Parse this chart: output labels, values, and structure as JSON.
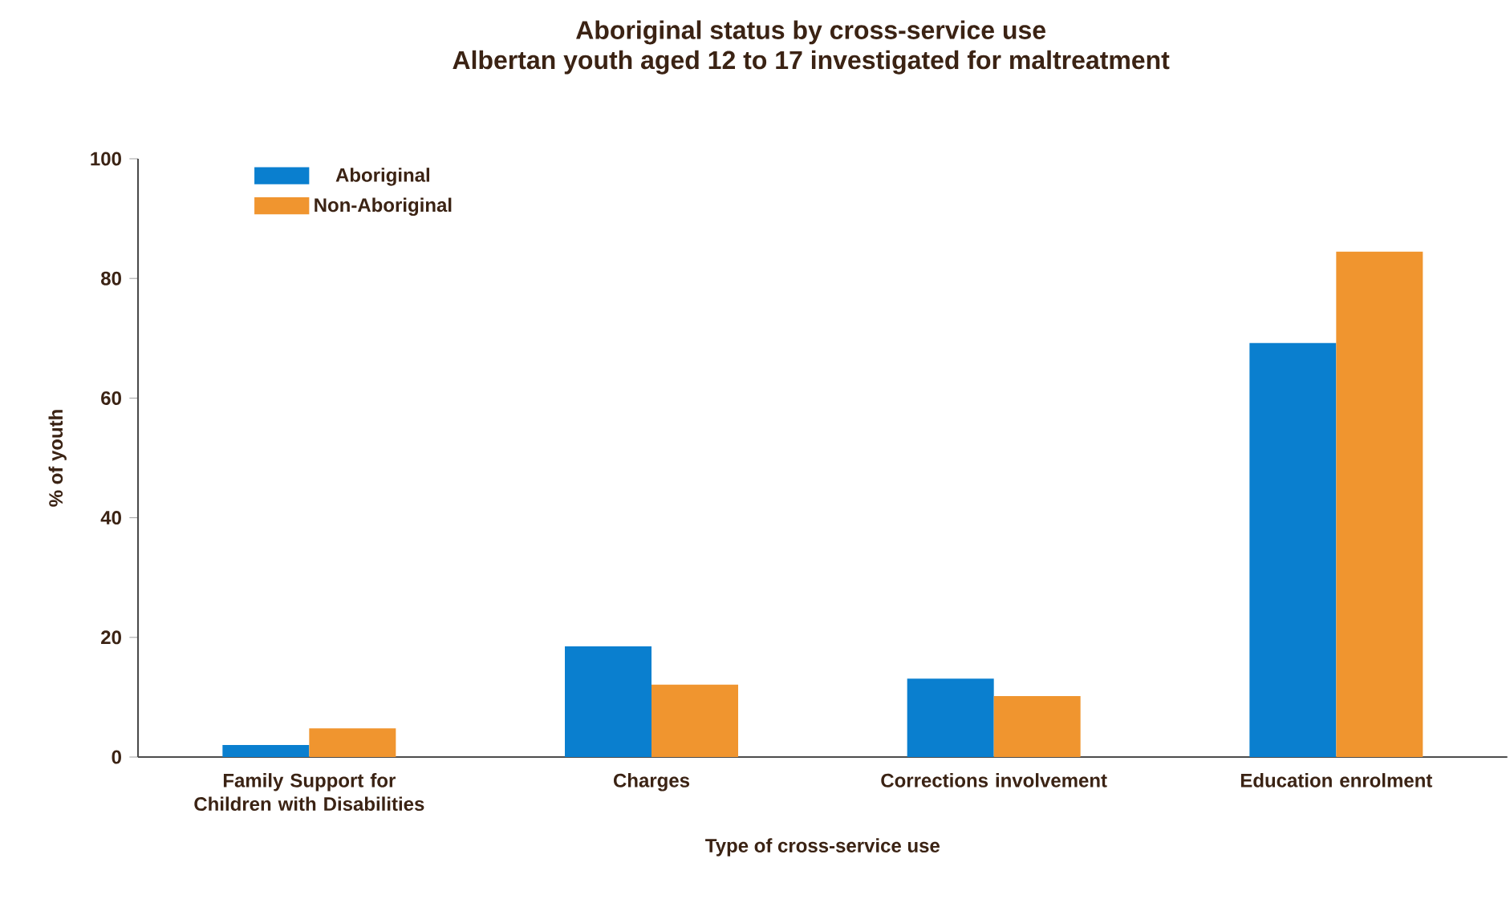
{
  "chart_data": {
    "type": "bar",
    "title": "Aboriginal status by cross-service use",
    "subtitle": "Albertan youth aged 12 to 17 investigated for maltreatment",
    "xlabel": "Type of cross-service use",
    "ylabel": "% of youth",
    "categories": [
      "Family Support for Children with Disabilities",
      "Charges",
      "Corrections involvement",
      "Education enrolment"
    ],
    "series": [
      {
        "name": "Aboriginal",
        "color": "#0a7fcf",
        "values": [
          2,
          18.5,
          13.1,
          69.2
        ]
      },
      {
        "name": "Non-Aboriginal",
        "color": "#f0952f",
        "values": [
          4.8,
          12.1,
          10.2,
          84.5
        ]
      }
    ],
    "ylim": [
      0,
      100
    ],
    "yticks": [
      0,
      20,
      40,
      60,
      80,
      100
    ],
    "grid": false,
    "legend": "top left"
  }
}
